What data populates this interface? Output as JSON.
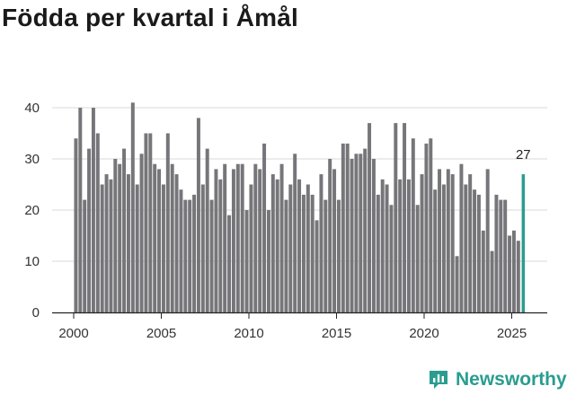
{
  "title": "Födda per kvartal i Åmål",
  "brand": {
    "name": "Newsworthy",
    "icon": "newsworthy-logo-icon"
  },
  "colors": {
    "bar": "#76767a",
    "highlight": "#2a9d8f",
    "grid": "#d9d9d9",
    "axis": "#222222"
  },
  "chart_data": {
    "type": "bar",
    "title": "Födda per kvartal i Åmål",
    "xlabel": "",
    "ylabel": "",
    "ylim": [
      0,
      45
    ],
    "y_ticks": [
      0,
      10,
      20,
      30,
      40
    ],
    "x_ticks": [
      2000,
      2005,
      2010,
      2015,
      2020,
      2025
    ],
    "grid": true,
    "highlight_label": "27",
    "series": [
      {
        "name": "Födda",
        "start_year": 2000,
        "start_quarter": 1,
        "values": [
          34,
          40,
          22,
          32,
          40,
          35,
          25,
          27,
          26,
          30,
          29,
          32,
          27,
          41,
          25,
          31,
          35,
          35,
          29,
          28,
          25,
          35,
          29,
          27,
          24,
          22,
          22,
          23,
          38,
          25,
          32,
          22,
          28,
          26,
          29,
          19,
          28,
          29,
          29,
          20,
          25,
          29,
          28,
          33,
          20,
          27,
          26,
          29,
          22,
          25,
          31,
          26,
          23,
          25,
          23,
          18,
          27,
          22,
          30,
          28,
          22,
          33,
          33,
          30,
          31,
          31,
          32,
          37,
          30,
          23,
          26,
          25,
          21,
          37,
          26,
          37,
          26,
          34,
          21,
          27,
          33,
          34,
          24,
          28,
          25,
          28,
          27,
          11,
          29,
          25,
          27,
          24,
          23,
          16,
          28,
          12,
          23,
          22,
          22,
          15,
          16,
          14,
          27
        ]
      }
    ]
  }
}
